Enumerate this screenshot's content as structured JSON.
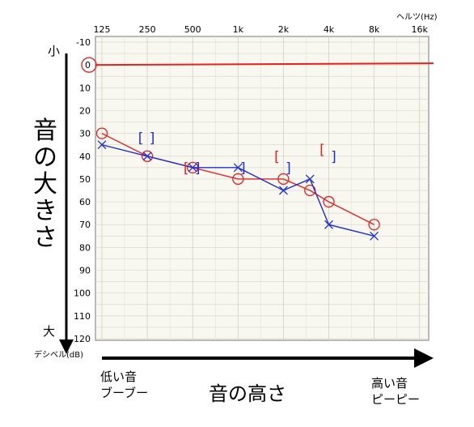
{
  "chart_data": {
    "type": "line",
    "title": "",
    "x_unit": "ヘルツ(Hz)",
    "categories": [
      "125",
      "250",
      "500",
      "1k",
      "2k",
      "4k",
      "8k",
      "16k"
    ],
    "y_unit": "デシベル(dB)",
    "ylim": [
      -10,
      120
    ],
    "y_ticks": [
      -10,
      0,
      10,
      20,
      30,
      40,
      50,
      60,
      70,
      80,
      90,
      100,
      110,
      120
    ],
    "y_inverted": true,
    "grid": true,
    "reference_line": {
      "y": 0,
      "color": "#e8211f"
    },
    "series": [
      {
        "marker": "circle",
        "color": "#e8211f",
        "x": [
          "125",
          "250",
          "500",
          "1k",
          "2k",
          "3k",
          "4k",
          "8k"
        ],
        "values": [
          30,
          40,
          45,
          50,
          50,
          55,
          60,
          70
        ]
      },
      {
        "marker": "cross",
        "color": "#1f2fd6",
        "x": [
          "125",
          "250",
          "500",
          "1k",
          "2k",
          "3k",
          "4k",
          "8k"
        ],
        "values": [
          35,
          40,
          45,
          45,
          55,
          50,
          70,
          75
        ]
      }
    ],
    "bone_conduction": [
      {
        "side": "right",
        "symbol": "[",
        "color": "#e8211f",
        "x": "500",
        "value": 45
      },
      {
        "side": "right",
        "symbol": "[",
        "color": "#e8211f",
        "x": "2k",
        "value": 40
      },
      {
        "side": "right",
        "symbol": "[",
        "color": "#e8211f",
        "x": "4k",
        "value": 37
      },
      {
        "side": "left",
        "symbol": "[",
        "color": "#1f2fd6",
        "x": "250",
        "value": 32
      },
      {
        "side": "left",
        "symbol": "]",
        "color": "#1f2fd6",
        "x": "250",
        "value": 32
      },
      {
        "side": "left",
        "symbol": "]",
        "color": "#1f2fd6",
        "x": "500",
        "value": 45
      },
      {
        "side": "left",
        "symbol": "]",
        "color": "#1f2fd6",
        "x": "1k",
        "value": 45
      },
      {
        "side": "left",
        "symbol": "]",
        "color": "#1f2fd6",
        "x": "2k",
        "value": 45
      },
      {
        "side": "left",
        "symbol": "]",
        "color": "#1f2fd6",
        "x": "4k",
        "value": 40
      }
    ]
  },
  "labels": {
    "small": "小",
    "large": "大",
    "y_axis_title": [
      "音",
      "の",
      "大",
      "き",
      "さ"
    ],
    "x_axis_title": "音の高さ",
    "low_pitch": "低い音",
    "low_sound": "ブーブー",
    "high_pitch": "高い音",
    "high_sound": "ピーピー"
  }
}
